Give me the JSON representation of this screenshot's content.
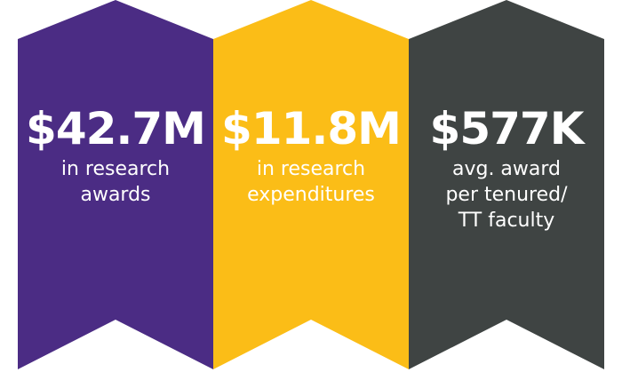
{
  "colors": {
    "purple": "#4b2c84",
    "gold": "#fbbd17",
    "charcoal": "#3f4443",
    "text": "#ffffff"
  },
  "stats": [
    {
      "value": "$42.7M",
      "description": "in research\nawards"
    },
    {
      "value": "$11.8M",
      "description": "in research\nexpenditures"
    },
    {
      "value": "$577K",
      "description": "avg. award\nper tenured/\nTT faculty"
    }
  ]
}
